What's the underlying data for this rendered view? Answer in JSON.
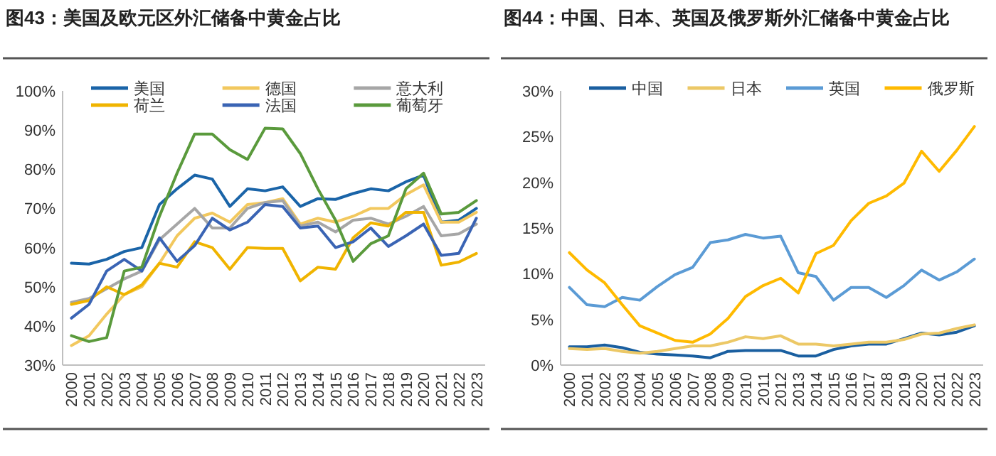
{
  "chart_data": [
    {
      "type": "line",
      "title": "图43：美国及欧元区外汇储备中黄金占比",
      "categories": [
        "2000",
        "2001",
        "2002",
        "2003",
        "2004",
        "2005",
        "2006",
        "2007",
        "2008",
        "2009",
        "2010",
        "2011",
        "2012",
        "2013",
        "2014",
        "2015",
        "2016",
        "2017",
        "2018",
        "2019",
        "2020",
        "2021",
        "2022",
        "2023"
      ],
      "series": [
        {
          "name": "美国",
          "color": "#1a64a8",
          "values": [
            56,
            55.8,
            57,
            59,
            60,
            71,
            75,
            78.5,
            77.5,
            70.5,
            75,
            74.5,
            75.5,
            70.5,
            72.5,
            72.3,
            73.8,
            75,
            74.5,
            76.8,
            78.5,
            66.5,
            67,
            70
          ]
        },
        {
          "name": "德国",
          "color": "#f2c85e",
          "values": [
            35,
            37.5,
            43,
            48,
            50,
            56,
            63,
            67.5,
            68.8,
            66.5,
            71,
            71.5,
            72.5,
            66,
            67.5,
            66.5,
            68,
            70,
            70,
            73.5,
            76,
            66.5,
            66.5,
            69
          ]
        },
        {
          "name": "意大利",
          "color": "#a6a6a6",
          "values": [
            46,
            47,
            49.5,
            52,
            54,
            62,
            66,
            70,
            65,
            65,
            70,
            71.5,
            72,
            65.5,
            66.5,
            64,
            67,
            67.5,
            66,
            68,
            70.5,
            63,
            63.5,
            66
          ]
        },
        {
          "name": "荷兰",
          "color": "#f0b400",
          "values": [
            45.5,
            46.5,
            50,
            48,
            50.5,
            56,
            55,
            61.5,
            60,
            54.5,
            60,
            59.8,
            59.8,
            51.5,
            55,
            54.5,
            62.5,
            66.3,
            65.5,
            69,
            69,
            55.5,
            56.3,
            58.5
          ]
        },
        {
          "name": "法国",
          "color": "#3a64b4",
          "values": [
            42,
            45.5,
            54,
            57,
            54,
            62.5,
            56.5,
            60.5,
            67.5,
            64.5,
            66.5,
            71,
            70.5,
            65,
            65.5,
            60,
            61.5,
            65,
            60.3,
            63,
            66,
            58,
            58.5,
            67.5
          ]
        },
        {
          "name": "葡萄牙",
          "color": "#5a9a3c",
          "values": [
            37.5,
            36,
            37,
            54,
            55,
            68,
            79,
            89,
            89,
            85,
            82.5,
            90.5,
            90.3,
            84,
            75,
            67,
            56.5,
            61,
            63,
            75,
            79,
            68.6,
            69,
            72
          ]
        }
      ],
      "ylim": [
        30,
        100
      ],
      "yticks": [
        {
          "value": 30,
          "label": "30%"
        },
        {
          "value": 40,
          "label": "40%"
        },
        {
          "value": 50,
          "label": "50%"
        },
        {
          "value": 60,
          "label": "60%"
        },
        {
          "value": 70,
          "label": "70%"
        },
        {
          "value": 80,
          "label": "80%"
        },
        {
          "value": 90,
          "label": "90%"
        },
        {
          "value": 100,
          "label": "100%"
        }
      ],
      "legend": "top",
      "line_style": "solid"
    },
    {
      "type": "line",
      "title": "图44：中国、日本、英国及俄罗斯外汇储备中黄金占比",
      "categories": [
        "2000",
        "2001",
        "2002",
        "2003",
        "2004",
        "2005",
        "2006",
        "2007",
        "2008",
        "2009",
        "2010",
        "2011",
        "2012",
        "2013",
        "2014",
        "2015",
        "2016",
        "2017",
        "2018",
        "2019",
        "2020",
        "2021",
        "2022",
        "2023"
      ],
      "series": [
        {
          "name": "中国",
          "color": "#1a5fa0",
          "values": [
            2.0,
            2.0,
            2.2,
            1.9,
            1.4,
            1.2,
            1.1,
            1.0,
            0.8,
            1.5,
            1.6,
            1.6,
            1.6,
            1.0,
            1.0,
            1.7,
            2.1,
            2.3,
            2.3,
            2.9,
            3.5,
            3.3,
            3.6,
            4.3
          ]
        },
        {
          "name": "日本",
          "color": "#ecc866",
          "values": [
            1.8,
            1.7,
            1.8,
            1.5,
            1.3,
            1.5,
            1.8,
            2.1,
            2.1,
            2.5,
            3.1,
            2.9,
            3.2,
            2.3,
            2.3,
            2.1,
            2.3,
            2.5,
            2.5,
            2.8,
            3.4,
            3.5,
            4.0,
            4.4
          ]
        },
        {
          "name": "英国",
          "color": "#5b9bd5",
          "values": [
            8.5,
            6.6,
            6.4,
            7.4,
            7.1,
            8.6,
            9.9,
            10.7,
            13.4,
            13.7,
            14.3,
            13.9,
            14.1,
            10.1,
            9.7,
            7.1,
            8.5,
            8.5,
            7.4,
            8.7,
            10.4,
            9.3,
            10.2,
            11.6
          ]
        },
        {
          "name": "俄罗斯",
          "color": "#ffba00",
          "values": [
            12.3,
            10.4,
            9.0,
            6.6,
            4.3,
            3.5,
            2.7,
            2.5,
            3.4,
            5.1,
            7.5,
            8.7,
            9.5,
            7.9,
            12.2,
            13.1,
            15.8,
            17.7,
            18.5,
            19.9,
            23.4,
            21.2,
            23.5,
            26.1
          ]
        }
      ],
      "ylim": [
        0,
        30
      ],
      "yticks": [
        {
          "value": 0,
          "label": "0%"
        },
        {
          "value": 5,
          "label": "5%"
        },
        {
          "value": 10,
          "label": "10%"
        },
        {
          "value": 15,
          "label": "15%"
        },
        {
          "value": 20,
          "label": "20%"
        },
        {
          "value": 25,
          "label": "25%"
        },
        {
          "value": 30,
          "label": "30%"
        }
      ],
      "legend": "top",
      "line_style": "solid"
    }
  ]
}
